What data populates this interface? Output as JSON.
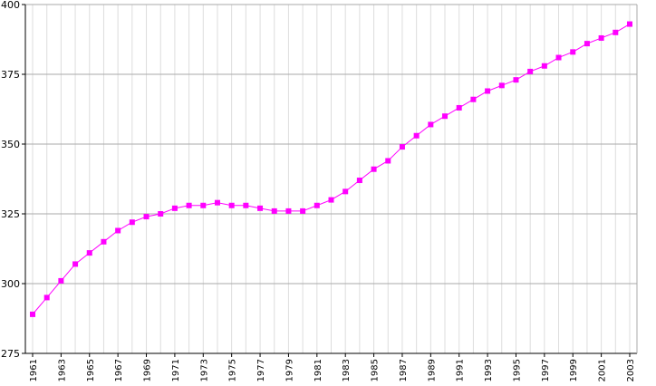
{
  "chart_data": {
    "type": "line",
    "title": "",
    "xlabel": "",
    "ylabel": "",
    "x": [
      1961,
      1962,
      1963,
      1964,
      1965,
      1966,
      1967,
      1968,
      1969,
      1970,
      1971,
      1972,
      1973,
      1974,
      1975,
      1976,
      1977,
      1978,
      1979,
      1980,
      1981,
      1982,
      1983,
      1984,
      1985,
      1986,
      1987,
      1988,
      1989,
      1990,
      1991,
      1992,
      1993,
      1994,
      1995,
      1996,
      1997,
      1998,
      1999,
      2000,
      2001,
      2002,
      2003
    ],
    "xlim": [
      1961,
      2003
    ],
    "xtick_labels": [
      "1961",
      "1963",
      "1965",
      "1967",
      "1969",
      "1971",
      "1973",
      "1975",
      "1977",
      "1979",
      "1981",
      "1983",
      "1985",
      "1987",
      "1989",
      "1991",
      "1993",
      "1995",
      "1997",
      "1999",
      "2001",
      "2003"
    ],
    "ylim": [
      275,
      400
    ],
    "ytick_labels": [
      "275",
      "300",
      "325",
      "350",
      "375",
      "400"
    ],
    "series": [
      {
        "color": "#ff00ff",
        "marker": "square",
        "values": [
          289,
          295,
          301,
          307,
          311,
          315,
          319,
          322,
          324,
          325,
          327,
          328,
          328,
          329,
          328,
          328,
          327,
          326,
          326,
          326,
          328,
          330,
          333,
          337,
          341,
          344,
          349,
          353,
          357,
          360,
          363,
          366,
          369,
          371,
          373,
          376,
          378,
          381,
          383,
          386,
          388,
          390,
          393
        ]
      }
    ],
    "grid": {
      "major": true,
      "minor_x": true
    },
    "legend": "none"
  }
}
